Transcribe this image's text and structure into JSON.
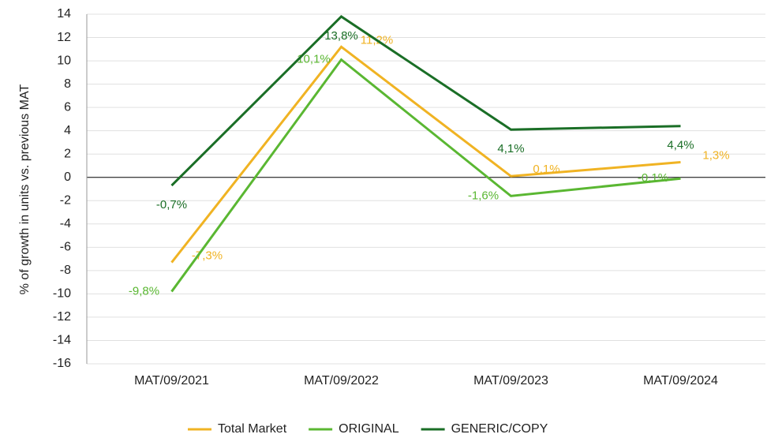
{
  "chart_data": {
    "type": "line",
    "y_label": "% of growth in units vs. previous MAT",
    "categories": [
      "MAT/09/2021",
      "MAT/09/2022",
      "MAT/09/2023",
      "MAT/09/2024"
    ],
    "series": [
      {
        "name": "Total Market",
        "color": "#f0b323",
        "values": [
          -7.3,
          11.2,
          0.1,
          1.3
        ],
        "value_labels": [
          "-7,3%",
          "11,2%",
          "0,1%",
          "1,3%"
        ]
      },
      {
        "name": "ORIGINAL",
        "color": "#5ab732",
        "values": [
          -9.8,
          10.1,
          -1.6,
          -0.1
        ],
        "value_labels": [
          "-9,8%",
          "10,1%",
          "-1,6%",
          "-0,1%"
        ]
      },
      {
        "name": "GENERIC/COPY",
        "color": "#1a6e26",
        "values": [
          -0.7,
          13.8,
          4.1,
          4.4
        ],
        "value_labels": [
          "-0,7%",
          "13,8%",
          "4,1%",
          "4,4%"
        ]
      }
    ],
    "ylim": [
      -16,
      14
    ],
    "yticks": [
      -16,
      -14,
      -12,
      -10,
      -8,
      -6,
      -4,
      -2,
      0,
      2,
      4,
      6,
      8,
      10,
      12,
      14
    ],
    "grid": true,
    "legend": "bottom"
  }
}
